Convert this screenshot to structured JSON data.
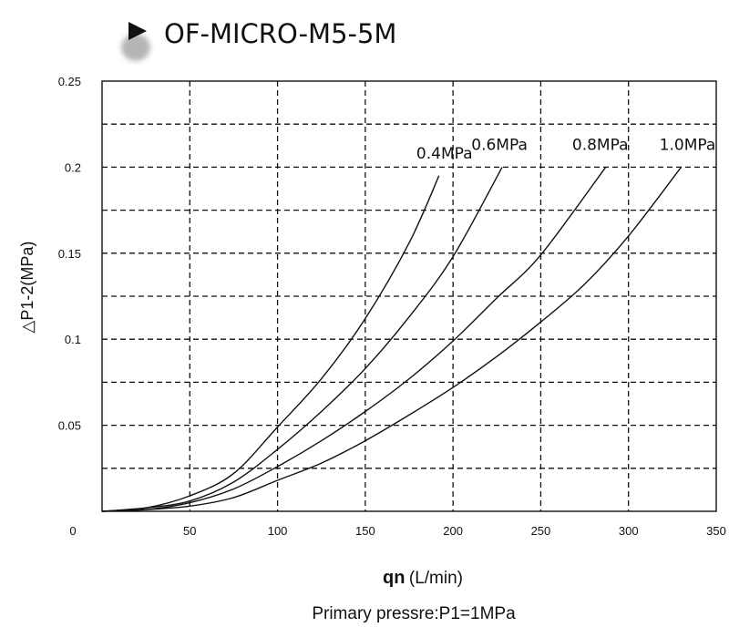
{
  "title": "OF-MICRO-M5-5M",
  "xlabel": {
    "main": "qn",
    "unit": "(L/min)"
  },
  "ylabel": "△P1-2(MPa)",
  "footnote": "Primary pressre:P1=1MPa",
  "colors": {
    "ink": "#111111",
    "background": "#ffffff"
  },
  "chart_data": {
    "type": "line",
    "xlim": [
      0,
      350
    ],
    "ylim": [
      0,
      0.25
    ],
    "x_ticks": [
      {
        "value": 0,
        "label": "0"
      },
      {
        "value": 50,
        "label": "50"
      },
      {
        "value": 100,
        "label": "100"
      },
      {
        "value": 150,
        "label": "150"
      },
      {
        "value": 200,
        "label": "200"
      },
      {
        "value": 250,
        "label": "250"
      },
      {
        "value": 300,
        "label": "300"
      },
      {
        "value": 350,
        "label": "350"
      }
    ],
    "y_ticks": [
      {
        "value": 0.05,
        "label": "0.05"
      },
      {
        "value": 0.1,
        "label": "0.1"
      },
      {
        "value": 0.15,
        "label": "0.15"
      },
      {
        "value": 0.2,
        "label": "0.2"
      },
      {
        "value": 0.25,
        "label": "0.25"
      }
    ],
    "x_gridlines": [
      50,
      100,
      150,
      200,
      250,
      300
    ],
    "y_gridlines": [
      0.025,
      0.05,
      0.075,
      0.1,
      0.125,
      0.15,
      0.175,
      0.2,
      0.225
    ],
    "grid": true,
    "grid_style": "dashed",
    "series": [
      {
        "name": "0.4MPa",
        "x": [
          0,
          25,
          50,
          75,
          100,
          125,
          150,
          175,
          192
        ],
        "y": [
          0,
          0.002,
          0.009,
          0.022,
          0.049,
          0.077,
          0.112,
          0.156,
          0.195
        ]
      },
      {
        "name": "0.6MPa",
        "x": [
          0,
          25,
          50,
          75,
          100,
          125,
          150,
          175,
          200,
          228
        ],
        "y": [
          0,
          0.002,
          0.006,
          0.017,
          0.036,
          0.058,
          0.083,
          0.113,
          0.148,
          0.2
        ]
      },
      {
        "name": "0.8MPa",
        "x": [
          0,
          25,
          50,
          75,
          100,
          125,
          150,
          175,
          200,
          225,
          250,
          287
        ],
        "y": [
          0,
          0.001,
          0.005,
          0.013,
          0.026,
          0.041,
          0.058,
          0.077,
          0.099,
          0.124,
          0.149,
          0.2
        ]
      },
      {
        "name": "1.0MPa",
        "x": [
          0,
          25,
          50,
          75,
          100,
          125,
          150,
          175,
          200,
          225,
          250,
          275,
          300,
          330
        ],
        "y": [
          0,
          0.001,
          0.003,
          0.008,
          0.018,
          0.028,
          0.041,
          0.056,
          0.072,
          0.09,
          0.11,
          0.132,
          0.16,
          0.2
        ]
      }
    ]
  }
}
